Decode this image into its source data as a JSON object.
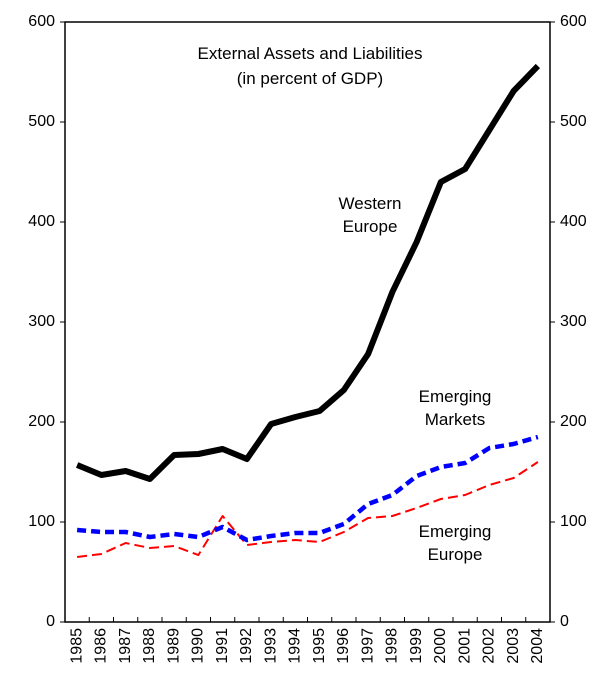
{
  "chart_data": {
    "type": "line",
    "title": "External Assets and Liabilities",
    "subtitle": "(in percent of GDP)",
    "categories": [
      "1985",
      "1986",
      "1987",
      "1988",
      "1989",
      "1990",
      "1991",
      "1992",
      "1993",
      "1994",
      "1995",
      "1996",
      "1997",
      "1998",
      "1999",
      "2000",
      "2001",
      "2002",
      "2003",
      "2004"
    ],
    "series": [
      {
        "name": "Western Europe",
        "color": "#000000",
        "values": [
          157,
          147,
          151,
          143,
          167,
          168,
          173,
          163,
          198,
          205,
          211,
          232,
          268,
          330,
          380,
          440,
          453,
          492,
          531,
          556
        ]
      },
      {
        "name": "Emerging Markets",
        "color": "#0000ff",
        "values": [
          92,
          90,
          90,
          85,
          88,
          85,
          95,
          82,
          86,
          89,
          89,
          98,
          118,
          127,
          146,
          155,
          159,
          174,
          178,
          185
        ]
      },
      {
        "name": "Emerging Europe",
        "color": "#ff0000",
        "values": [
          65,
          68,
          79,
          74,
          76,
          67,
          106,
          77,
          80,
          82,
          80,
          90,
          104,
          106,
          114,
          123,
          127,
          137,
          144,
          160
        ]
      }
    ],
    "ylim": [
      0,
      600
    ],
    "yticks": [
      0,
      100,
      200,
      300,
      400,
      500,
      600
    ],
    "y2lim": [
      0,
      600
    ],
    "y2ticks": [
      0,
      100,
      200,
      300,
      400,
      500,
      600
    ]
  }
}
